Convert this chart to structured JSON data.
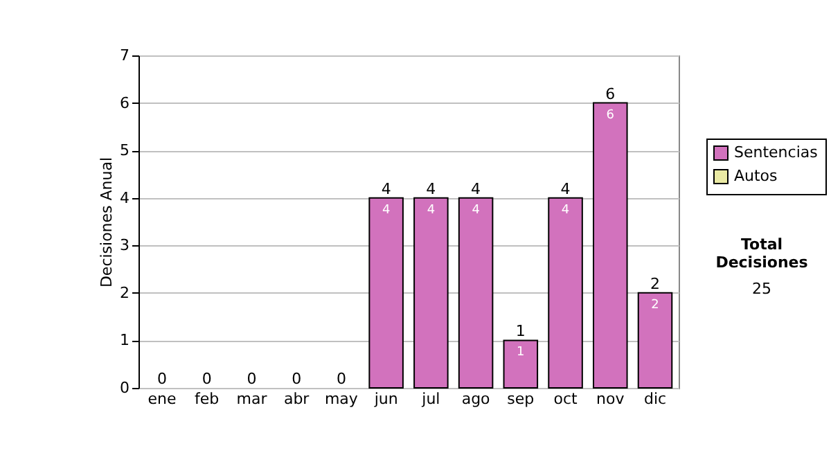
{
  "chart_data": {
    "type": "bar",
    "stacked": true,
    "ylabel": "Decisiones Anual",
    "categories": [
      "ene",
      "feb",
      "mar",
      "abr",
      "may",
      "jun",
      "jul",
      "ago",
      "sep",
      "oct",
      "nov",
      "dic"
    ],
    "series": [
      {
        "name": "Sentencias",
        "color": "#d272bd",
        "values": [
          0,
          0,
          0,
          0,
          0,
          4,
          4,
          4,
          1,
          4,
          6,
          2
        ],
        "value_labels": [
          null,
          null,
          null,
          null,
          null,
          "4",
          "4",
          "4",
          "1",
          "4",
          "6",
          "2"
        ]
      },
      {
        "name": "Autos",
        "color": "#eaeaa4",
        "values": [
          0,
          0,
          0,
          0,
          0,
          0,
          0,
          0,
          0,
          0,
          0,
          0
        ]
      }
    ],
    "totals": [
      "0",
      "0",
      "0",
      "0",
      "0",
      "4",
      "4",
      "4",
      "1",
      "4",
      "6",
      "2"
    ],
    "ylim": [
      0,
      7
    ],
    "yticks": [
      0,
      1,
      2,
      3,
      4,
      5,
      6,
      7
    ],
    "grid": "y",
    "legend": "right",
    "annotations": [
      "Total Decisiones",
      "25"
    ]
  }
}
